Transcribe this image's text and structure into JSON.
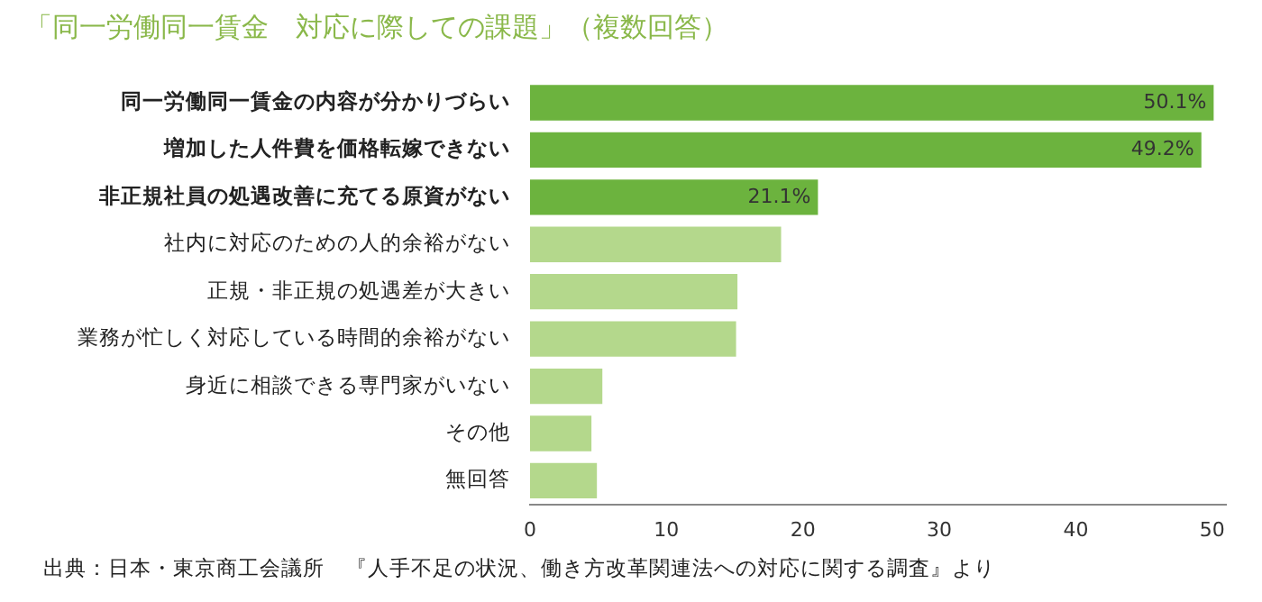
{
  "chart_data": {
    "type": "bar",
    "orientation": "horizontal",
    "title": "「同一労働同一賃金　対応に際しての課題」（複数回答）",
    "categories": [
      "同一労働同一賃金の内容が分かりづらい",
      "増加した人件費を価格転嫁できない",
      "非正規社員の処遇改善に充てる原資がない",
      "社内に対応のための人的余裕がない",
      "正規・非正規の処遇差が大きい",
      "業務が忙しく対応している時間的余裕がない",
      "身近に相談できる専門家がいない",
      "その他",
      "無回答"
    ],
    "values": [
      50.1,
      49.2,
      21.1,
      18.4,
      15.2,
      15.1,
      5.3,
      4.5,
      4.9
    ],
    "value_labels": [
      "50.1%",
      "49.2%",
      "21.1%",
      null,
      null,
      null,
      null,
      null,
      null
    ],
    "colors": [
      "#6cb33e",
      "#6cb33e",
      "#6cb33e",
      "#b4d88c",
      "#b4d88c",
      "#b4d88c",
      "#b4d88c",
      "#b4d88c",
      "#b4d88c"
    ],
    "xlim": [
      0,
      51
    ],
    "xticks": [
      0,
      10,
      20,
      30,
      40,
      50
    ],
    "grid": false,
    "legend": false,
    "annotations": [
      "出典：日本・東京商工会議所　『人手不足の状況、働き方改革関連法への対応に関する調査』より"
    ]
  }
}
